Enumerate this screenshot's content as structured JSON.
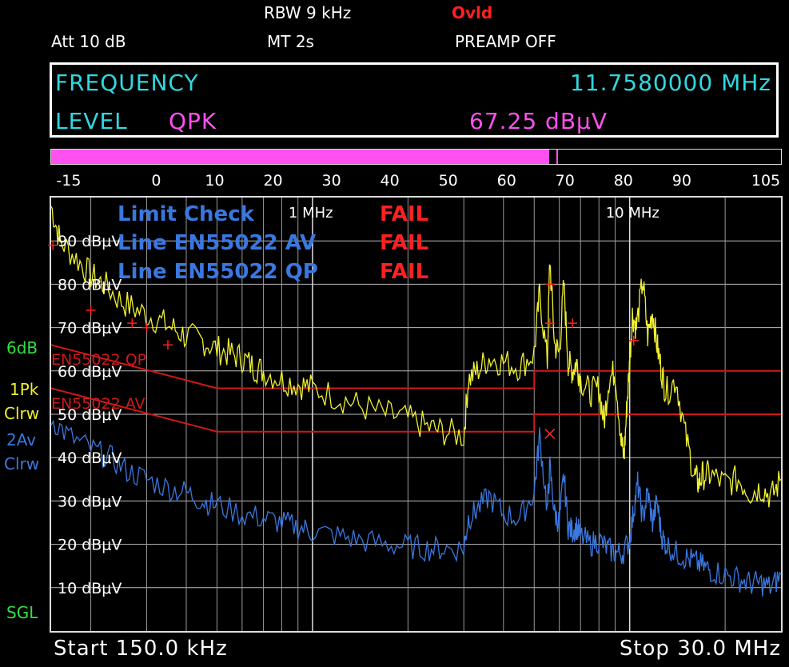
{
  "header": {
    "rbw": "RBW 9 kHz",
    "ovld": "Ovld",
    "att": "Att   10 dB",
    "mt": "MT    2s",
    "preamp": "PREAMP OFF"
  },
  "readout": {
    "frequency_label": "FREQUENCY",
    "frequency_value": "11.7580000 MHz",
    "level_label": "LEVEL",
    "detector": "QPK",
    "level_value": "67.25 dBμV"
  },
  "level_bar": {
    "min": -18,
    "max": 107,
    "value": 67.25,
    "peak_marker": 68.5,
    "ticks": [
      "-15",
      "0",
      "10",
      "20",
      "30",
      "40",
      "50",
      "60",
      "70",
      "80",
      "90",
      "105"
    ],
    "fill_color": "#ff50f0"
  },
  "side_labels": {
    "range": "6dB",
    "trace1": "1Pk",
    "trace1_mode": "Clrw",
    "trace2": "2Av",
    "trace2_mode": "Clrw",
    "sweep": "SGL"
  },
  "footer": {
    "start": "Start 150.0 kHz",
    "stop": "Stop 30.0 MHz"
  },
  "chart_data": {
    "type": "line",
    "xscale": "log",
    "xlim_mhz": [
      0.15,
      30
    ],
    "ylim_dbuv": [
      0,
      100
    ],
    "y_ticks": [
      10,
      20,
      30,
      40,
      50,
      60,
      70,
      80,
      90
    ],
    "y_tick_labels": [
      "10 dBμV",
      "20 dBμV",
      "30 dBμV",
      "40 dBμV",
      "50 dBμV",
      "60 dBμV",
      "70 dBμV",
      "80 dBμV",
      "90 dBμV"
    ],
    "x_decade_labels": [
      {
        "x": 1,
        "label": "1 MHz"
      },
      {
        "x": 10,
        "label": "10 MHz"
      }
    ],
    "grid": true,
    "limit_check": {
      "title": "Limit Check",
      "title_result": "FAIL",
      "lines": [
        {
          "name": "Line EN55022 AV",
          "result": "FAIL"
        },
        {
          "name": "Line EN55022 QP",
          "result": "FAIL"
        }
      ]
    },
    "limit_lines": [
      {
        "name": "EN55022 QP",
        "color": "#d01818",
        "x": [
          0.15,
          0.5,
          0.5,
          5,
          5,
          30
        ],
        "y": [
          66,
          56,
          56,
          56,
          60,
          60
        ]
      },
      {
        "name": "EN55022 AV",
        "color": "#d01818",
        "x": [
          0.15,
          0.5,
          0.5,
          5,
          5,
          30
        ],
        "y": [
          56,
          46,
          46,
          46,
          50,
          50
        ]
      }
    ],
    "series": [
      {
        "trace": "1Pk",
        "color": "#f0f030",
        "x": [
          0.15,
          0.16,
          0.18,
          0.2,
          0.22,
          0.25,
          0.28,
          0.32,
          0.36,
          0.4,
          0.45,
          0.5,
          0.55,
          0.6,
          0.65,
          0.7,
          0.8,
          0.9,
          1.0,
          1.2,
          1.4,
          1.7,
          2.0,
          2.3,
          2.6,
          3.0,
          3.1,
          3.3,
          3.6,
          4.0,
          4.5,
          5.0,
          5.2,
          5.5,
          5.6,
          5.8,
          6.0,
          6.2,
          6.4,
          6.6,
          6.8,
          7.0,
          7.5,
          8.0,
          8.3,
          8.6,
          9.0,
          9.4,
          9.6,
          9.8,
          10.0,
          10.2,
          10.5,
          11.0,
          11.4,
          11.8,
          12.2,
          12.6,
          13.0,
          14.0,
          15.0,
          16.0,
          16.5,
          17.0,
          18.0,
          20.0,
          22.0,
          24.0,
          26.0,
          28.0,
          30.0
        ],
        "y": [
          98,
          90,
          86,
          82,
          80,
          76,
          74,
          72,
          70,
          68,
          67,
          65,
          64,
          63,
          61,
          60,
          58,
          57,
          56,
          54,
          52,
          50,
          49,
          47,
          46,
          45,
          58,
          60,
          63,
          62,
          61,
          64,
          78,
          62,
          86,
          66,
          64,
          80,
          62,
          60,
          62,
          58,
          55,
          56,
          48,
          58,
          60,
          44,
          40,
          52,
          62,
          73,
          70,
          81,
          68,
          74,
          66,
          60,
          55,
          58,
          45,
          36,
          34,
          36,
          36,
          34,
          35,
          32,
          33,
          31,
          35
        ]
      },
      {
        "trace": "2Av",
        "color": "#3a78e0",
        "x": [
          0.15,
          0.17,
          0.2,
          0.23,
          0.26,
          0.3,
          0.35,
          0.4,
          0.45,
          0.5,
          0.6,
          0.7,
          0.8,
          0.9,
          1.0,
          1.2,
          1.4,
          1.7,
          2.0,
          2.3,
          2.6,
          3.0,
          3.1,
          3.3,
          3.6,
          4.0,
          4.5,
          5.0,
          5.2,
          5.5,
          5.6,
          5.8,
          6.0,
          6.2,
          6.4,
          6.6,
          6.8,
          7.0,
          7.5,
          8.0,
          8.5,
          9.0,
          9.5,
          10.0,
          10.3,
          10.6,
          11.0,
          11.4,
          11.8,
          12.2,
          12.6,
          13.0,
          14.0,
          15.0,
          16.0,
          17.0,
          18.0,
          20.0,
          22.0,
          24.0,
          26.0,
          28.0,
          30.0
        ],
        "y": [
          49,
          45,
          42,
          40,
          37,
          35,
          33,
          32,
          30,
          29,
          27,
          26,
          25,
          24,
          23,
          22,
          21,
          20,
          19.5,
          19,
          19,
          19,
          26,
          28,
          31,
          27,
          26,
          32,
          45,
          28,
          38,
          27,
          25,
          36,
          24,
          23,
          24,
          22,
          20,
          21,
          19,
          18,
          18,
          21,
          28,
          34,
          26,
          32,
          25,
          30,
          22,
          20,
          18,
          17,
          16,
          15,
          14,
          13,
          12,
          11,
          11,
          10,
          13
        ]
      }
    ],
    "markers_plus": [
      [
        0.152,
        89
      ],
      [
        0.2,
        74
      ],
      [
        0.27,
        71
      ],
      [
        0.3,
        70
      ],
      [
        0.35,
        66
      ],
      [
        5.6,
        80
      ],
      [
        5.6,
        71
      ],
      [
        6.6,
        71
      ],
      [
        10.3,
        67
      ]
    ],
    "marker_x": [
      5.6,
      45.5
    ]
  }
}
